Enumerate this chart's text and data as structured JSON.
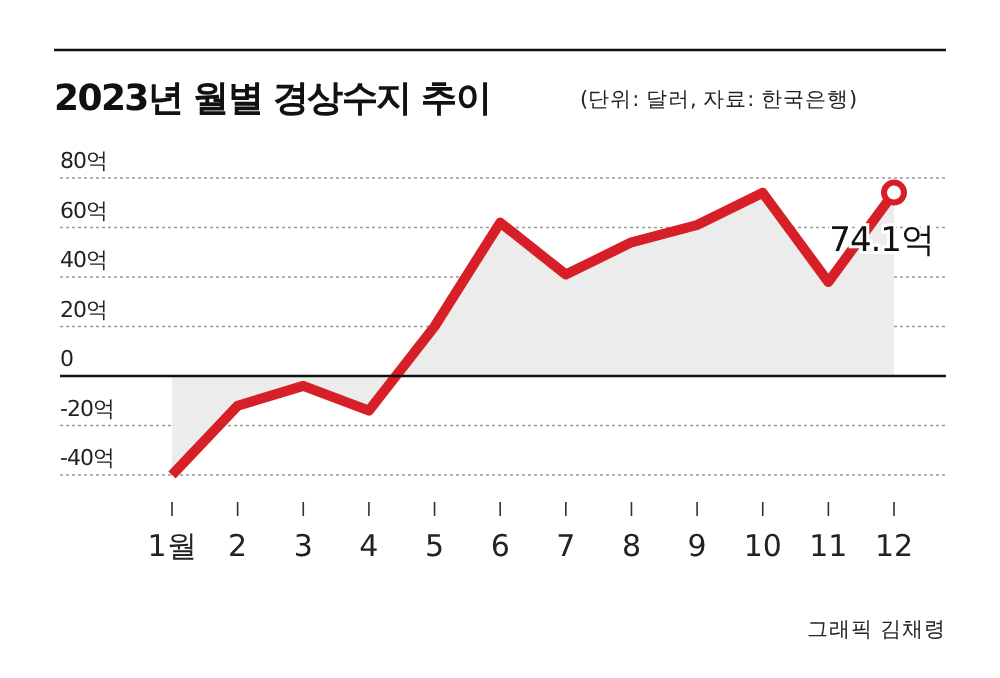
{
  "chart_data": {
    "type": "area",
    "title": "2023년 월별 경상수지 추이",
    "subtitle": "(단위: 달러, 자료: 한국은행)",
    "categories": [
      "1월",
      "2",
      "3",
      "4",
      "5",
      "6",
      "7",
      "8",
      "9",
      "10",
      "11",
      "12"
    ],
    "series": [
      {
        "color": "#d61f26",
        "values": [
          -40,
          -12,
          -4,
          -14,
          20,
          62,
          41,
          54,
          61,
          74,
          38,
          74.1
        ],
        "value_labels": [
          null,
          null,
          null,
          null,
          null,
          null,
          null,
          null,
          null,
          null,
          null,
          "74.1억"
        ]
      }
    ],
    "ylim": [
      -40,
      80
    ],
    "yticks": [
      {
        "value": -40,
        "label": "-40억"
      },
      {
        "value": -20,
        "label": "-20억"
      },
      0,
      {
        "value": 20,
        "label": "20억"
      },
      {
        "value": 40,
        "label": "40억"
      },
      {
        "value": 60,
        "label": "60억"
      },
      {
        "value": 80,
        "label": "80억"
      }
    ],
    "grid": "y",
    "annotations": [
      "그래픽 김채령"
    ]
  }
}
